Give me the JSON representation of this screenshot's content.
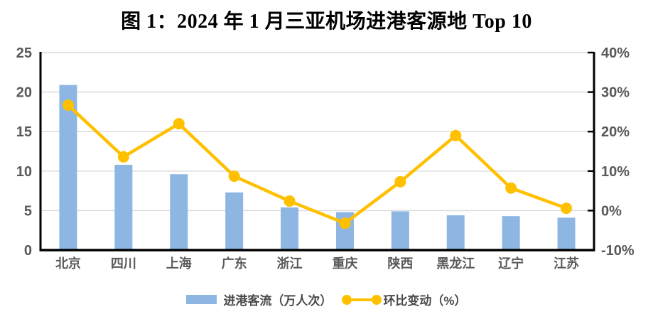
{
  "title": "图 1：2024 年 1 月三亚机场进港客源地 Top 10",
  "legend": {
    "bar_label": "进港客流（万人次）",
    "line_label": "环比变动（%）"
  },
  "chart_data": {
    "type": "combo-bar-line",
    "title": "图 1：2024 年 1 月三亚机场进港客源地 Top 10",
    "categories": [
      "北京",
      "四川",
      "上海",
      "广东",
      "浙江",
      "重庆",
      "陕西",
      "黑龙江",
      "辽宁",
      "江苏"
    ],
    "series": [
      {
        "name": "进港客流（万人次）",
        "type": "bar",
        "axis": "left",
        "values": [
          20.9,
          10.8,
          9.6,
          7.3,
          5.4,
          4.8,
          4.9,
          4.4,
          4.3,
          4.1
        ]
      },
      {
        "name": "环比变动（%）",
        "type": "line",
        "axis": "right",
        "values": [
          26.7,
          13.6,
          22.0,
          8.7,
          2.4,
          -3.2,
          7.3,
          19.0,
          5.7,
          0.6
        ]
      }
    ],
    "left_axis": {
      "min": 0,
      "max": 25,
      "step": 5,
      "ticks": [
        "0",
        "5",
        "10",
        "15",
        "20",
        "25"
      ]
    },
    "right_axis": {
      "min": -10,
      "max": 40,
      "step": 10,
      "ticks": [
        "-10%",
        "0%",
        "10%",
        "20%",
        "30%",
        "40%"
      ]
    },
    "grid": true,
    "legend_position": "bottom",
    "colors": {
      "bar": "#8DB7E2",
      "line": "#FFC000",
      "gridline": "#D9D9D9",
      "axis_line": "#000000",
      "tick_label": "#595959",
      "category_label": "#595959"
    }
  }
}
